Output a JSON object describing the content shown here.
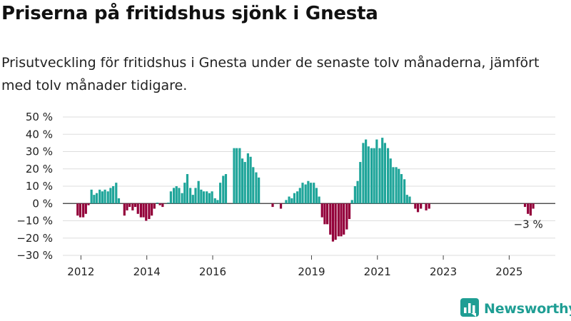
{
  "title": "Priserna på fritidshus sjönk i Gnesta",
  "subtitle": "Prisutveckling för fritidshus i Gnesta under de senaste tolv månaderna, jämfört med tolv månader tidigare.",
  "brand": {
    "name": "Newsworthy",
    "icon": "newsworthy-logo-icon"
  },
  "colors": {
    "positive": "#1fa59a",
    "negative": "#93003a",
    "grid": "#dddddd",
    "zero_line": "#333333"
  },
  "chart_data": {
    "type": "bar",
    "ylim": [
      -30,
      50
    ],
    "yticks": [
      -30,
      -20,
      -10,
      0,
      10,
      20,
      30,
      40,
      50
    ],
    "ytick_labels": [
      "−30 %",
      "−20 %",
      "−10 %",
      "0 %",
      "10 %",
      "20 %",
      "30 %",
      "40 %",
      "50 %"
    ],
    "xlim": [
      2011.45,
      2026.4
    ],
    "xticks": [
      2012,
      2014,
      2016,
      2019,
      2021,
      2023,
      2025
    ],
    "xtick_labels": [
      "2012",
      "2014",
      "2016",
      "2019",
      "2021",
      "2023",
      "2025"
    ],
    "grid": true,
    "annotation": {
      "x": 2025.58,
      "y": -3,
      "label": "−3 %"
    },
    "series": [
      {
        "values": [
          [
            2011.9,
            -7
          ],
          [
            2011.98,
            -8
          ],
          [
            2012.07,
            -8
          ],
          [
            2012.15,
            -6
          ],
          [
            2012.23,
            -1
          ],
          [
            2012.32,
            8
          ],
          [
            2012.4,
            5
          ],
          [
            2012.48,
            6
          ],
          [
            2012.57,
            8
          ],
          [
            2012.65,
            7
          ],
          [
            2012.73,
            8
          ],
          [
            2012.82,
            7
          ],
          [
            2012.9,
            9
          ],
          [
            2012.98,
            10
          ],
          [
            2013.07,
            12
          ],
          [
            2013.15,
            3
          ],
          [
            2013.32,
            -7
          ],
          [
            2013.4,
            -4
          ],
          [
            2013.48,
            -2
          ],
          [
            2013.57,
            -4
          ],
          [
            2013.65,
            -2
          ],
          [
            2013.73,
            -6
          ],
          [
            2013.82,
            -8
          ],
          [
            2013.9,
            -8
          ],
          [
            2013.98,
            -10
          ],
          [
            2014.07,
            -9
          ],
          [
            2014.15,
            -7
          ],
          [
            2014.23,
            -3
          ],
          [
            2014.32,
            0.5
          ],
          [
            2014.4,
            -1
          ],
          [
            2014.48,
            -2
          ],
          [
            2014.65,
            0.5
          ],
          [
            2014.73,
            7
          ],
          [
            2014.82,
            9
          ],
          [
            2014.9,
            10
          ],
          [
            2014.98,
            9
          ],
          [
            2015.07,
            6
          ],
          [
            2015.15,
            12
          ],
          [
            2015.23,
            17
          ],
          [
            2015.32,
            9
          ],
          [
            2015.4,
            5
          ],
          [
            2015.48,
            9
          ],
          [
            2015.57,
            13
          ],
          [
            2015.65,
            8
          ],
          [
            2015.73,
            7
          ],
          [
            2015.82,
            7
          ],
          [
            2015.9,
            6
          ],
          [
            2015.98,
            7
          ],
          [
            2016.07,
            3
          ],
          [
            2016.15,
            2
          ],
          [
            2016.23,
            12
          ],
          [
            2016.32,
            16
          ],
          [
            2016.4,
            17
          ],
          [
            2016.65,
            32
          ],
          [
            2016.73,
            32
          ],
          [
            2016.82,
            32
          ],
          [
            2016.9,
            26
          ],
          [
            2016.98,
            24
          ],
          [
            2017.07,
            29
          ],
          [
            2017.15,
            27
          ],
          [
            2017.23,
            21
          ],
          [
            2017.32,
            18
          ],
          [
            2017.4,
            15
          ],
          [
            2017.82,
            -2
          ],
          [
            2018.07,
            -3
          ],
          [
            2018.23,
            2
          ],
          [
            2018.32,
            4
          ],
          [
            2018.4,
            3
          ],
          [
            2018.48,
            6
          ],
          [
            2018.57,
            7
          ],
          [
            2018.65,
            9
          ],
          [
            2018.73,
            12
          ],
          [
            2018.82,
            11
          ],
          [
            2018.9,
            13
          ],
          [
            2018.98,
            12
          ],
          [
            2019.07,
            12
          ],
          [
            2019.15,
            9
          ],
          [
            2019.23,
            4
          ],
          [
            2019.32,
            -8
          ],
          [
            2019.4,
            -12
          ],
          [
            2019.48,
            -12
          ],
          [
            2019.57,
            -18
          ],
          [
            2019.65,
            -22
          ],
          [
            2019.73,
            -21
          ],
          [
            2019.82,
            -19
          ],
          [
            2019.9,
            -19
          ],
          [
            2019.98,
            -18
          ],
          [
            2020.07,
            -15
          ],
          [
            2020.15,
            -9
          ],
          [
            2020.23,
            2
          ],
          [
            2020.32,
            10
          ],
          [
            2020.4,
            13
          ],
          [
            2020.48,
            24
          ],
          [
            2020.57,
            35
          ],
          [
            2020.65,
            37
          ],
          [
            2020.73,
            33
          ],
          [
            2020.82,
            32
          ],
          [
            2020.9,
            32
          ],
          [
            2020.98,
            37
          ],
          [
            2021.07,
            32
          ],
          [
            2021.15,
            38
          ],
          [
            2021.23,
            35
          ],
          [
            2021.32,
            32
          ],
          [
            2021.4,
            26
          ],
          [
            2021.48,
            21
          ],
          [
            2021.57,
            21
          ],
          [
            2021.65,
            20
          ],
          [
            2021.73,
            17
          ],
          [
            2021.82,
            14
          ],
          [
            2021.9,
            5
          ],
          [
            2021.98,
            4
          ],
          [
            2022.15,
            -3
          ],
          [
            2022.23,
            -5
          ],
          [
            2022.32,
            -3
          ],
          [
            2022.48,
            -4
          ],
          [
            2022.57,
            -3
          ],
          [
            2025.48,
            -2
          ],
          [
            2025.57,
            -6
          ],
          [
            2025.65,
            -7
          ],
          [
            2025.73,
            -3
          ]
        ]
      }
    ]
  }
}
